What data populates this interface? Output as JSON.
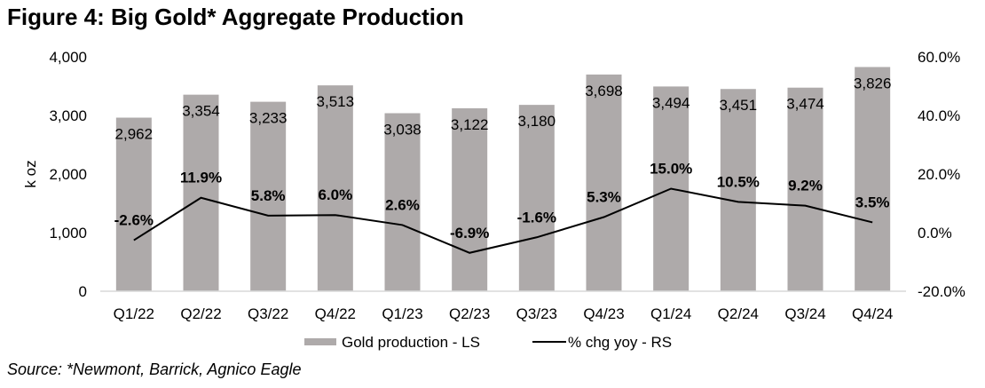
{
  "title": "Figure 4: Big Gold* Aggregate Production",
  "source": "Source: *Newmont, Barrick, Agnico Eagle",
  "chart_data": {
    "type": "bar+line",
    "categories": [
      "Q1/22",
      "Q2/22",
      "Q3/22",
      "Q4/22",
      "Q1/23",
      "Q2/23",
      "Q3/23",
      "Q4/23",
      "Q1/24",
      "Q2/24",
      "Q3/24",
      "Q4/24"
    ],
    "series": [
      {
        "name": "Gold production - LS",
        "type": "bar",
        "axis": "left",
        "color": "#aeaaaa",
        "values": [
          2962,
          3354,
          3233,
          3513,
          3038,
          3122,
          3180,
          3698,
          3494,
          3451,
          3474,
          3826
        ],
        "labels": [
          "2,962",
          "3,354",
          "3,233",
          "3,513",
          "3,038",
          "3,122",
          "3,180",
          "3,698",
          "3,494",
          "3,451",
          "3,474",
          "3,826"
        ]
      },
      {
        "name": "% chg yoy - RS",
        "type": "line",
        "axis": "right",
        "color": "#000000",
        "values": [
          -2.6,
          11.9,
          5.8,
          6.0,
          2.6,
          -6.9,
          -1.6,
          5.3,
          15.0,
          10.5,
          9.2,
          3.5
        ],
        "labels": [
          "-2.6%",
          "11.9%",
          "5.8%",
          "6.0%",
          "2.6%",
          "-6.9%",
          "-1.6%",
          "5.3%",
          "15.0%",
          "10.5%",
          "9.2%",
          "3.5%"
        ]
      }
    ],
    "ylabel": "k oz",
    "ylim": [
      0,
      4000
    ],
    "yticks": [
      "0",
      "1,000",
      "2,000",
      "3,000",
      "4,000"
    ],
    "y2lim": [
      -20,
      60
    ],
    "y2ticks": [
      "-20.0%",
      "0.0%",
      "20.0%",
      "40.0%",
      "60.0%"
    ],
    "grid": false,
    "legend": "bottom"
  }
}
